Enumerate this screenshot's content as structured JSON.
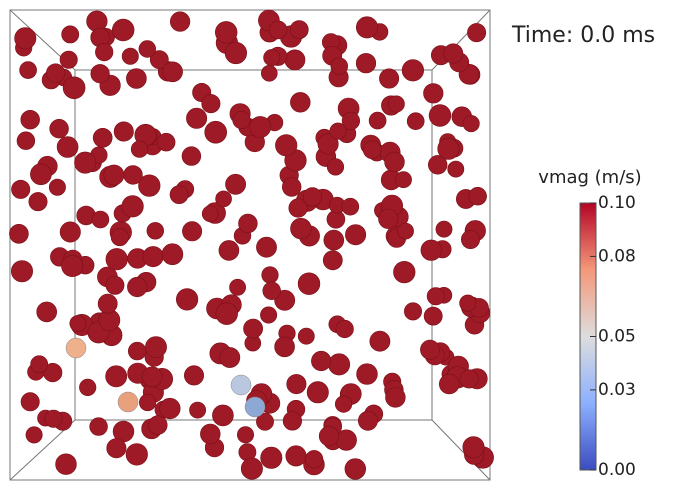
{
  "time_label": "Time:  0.0 ms",
  "colorbar": {
    "title": "vmag (m/s)",
    "range": [
      0,
      0.1
    ],
    "ticks": [
      {
        "value": 0.1,
        "label": "0.10"
      },
      {
        "value": 0.08,
        "label": "0.08"
      },
      {
        "value": 0.05,
        "label": "0.05"
      },
      {
        "value": 0.03,
        "label": "0.03"
      },
      {
        "value": 0,
        "label": "0.00"
      }
    ]
  }
}
